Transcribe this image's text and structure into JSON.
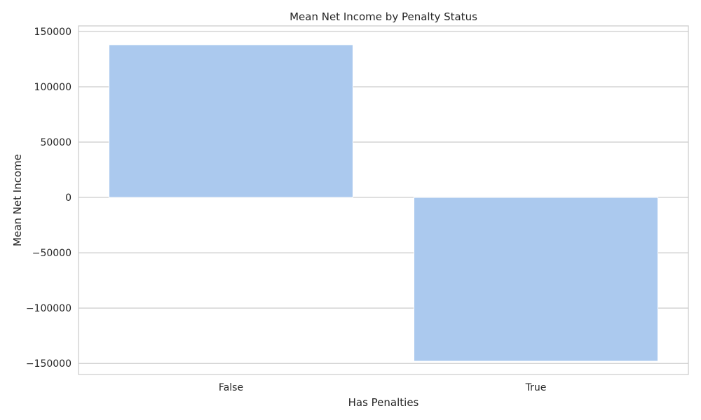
{
  "chart_data": {
    "type": "bar",
    "title": "Mean Net Income by Penalty Status",
    "xlabel": "Has Penalties",
    "ylabel": "Mean Net Income",
    "categories": [
      "False",
      "True"
    ],
    "values": [
      138000,
      -148000
    ],
    "ylim": [
      -160000,
      155000
    ],
    "yticks": [
      150000,
      100000,
      50000,
      0,
      -50000,
      -100000,
      -150000
    ],
    "ytick_labels": [
      "150000",
      "100000",
      "50000",
      "0",
      "−50000",
      "−100000",
      "−150000"
    ],
    "grid": true,
    "bar_color": "#abc9ee",
    "grid_color": "#cccccc"
  }
}
